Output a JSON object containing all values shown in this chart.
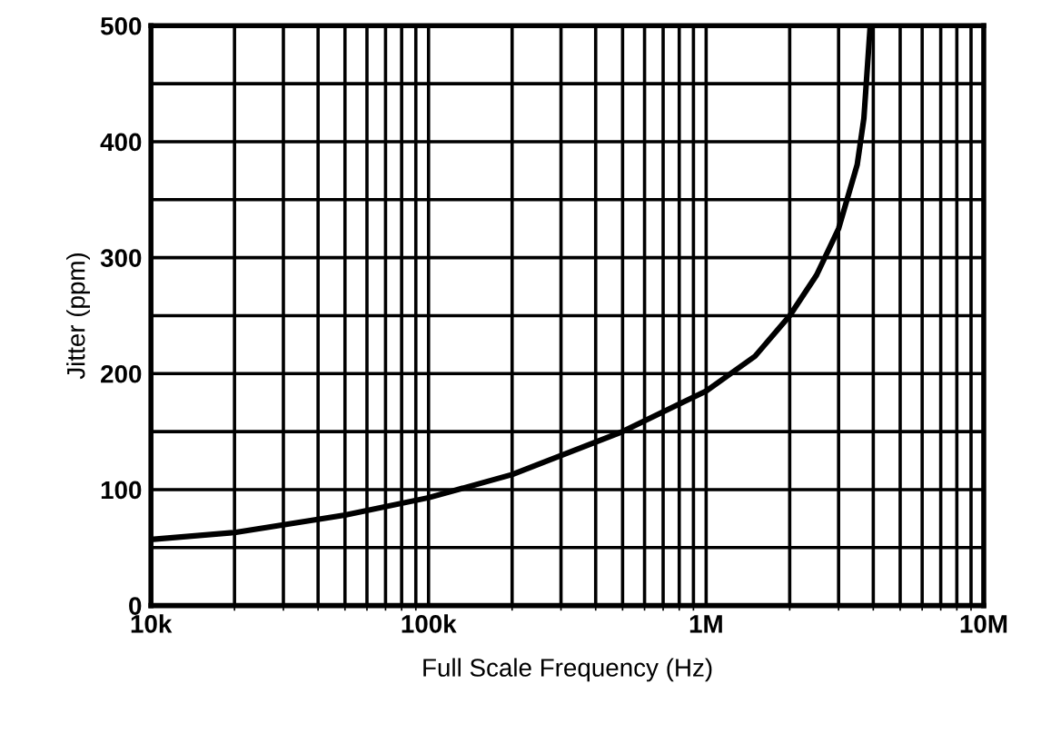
{
  "chart_data": {
    "type": "line",
    "xlabel": "Full Scale Frequency (Hz)",
    "ylabel": "Jitter (ppm)",
    "log": "x",
    "x": [
      10000,
      20000,
      50000,
      100000,
      200000,
      500000,
      1000000,
      1500000,
      2000000,
      2500000,
      3000000,
      3500000,
      3700000,
      3900000
    ],
    "series": [
      {
        "color": "#000000",
        "values": [
          57,
          63,
          78,
          93,
          113,
          150,
          185,
          215,
          250,
          285,
          325,
          380,
          420,
          500
        ]
      }
    ],
    "xlim": [
      10000,
      10000000
    ],
    "xticks": [
      {
        "value": 10000,
        "label": "10k"
      },
      {
        "value": 100000,
        "label": "100k"
      },
      {
        "value": 1000000,
        "label": "1M"
      },
      {
        "value": 10000000,
        "label": "10M"
      }
    ],
    "ylim": [
      0,
      500
    ],
    "yticks": [
      0,
      {
        "value": 50,
        "label": null
      },
      100,
      {
        "value": 150,
        "label": null
      },
      200,
      {
        "value": 250,
        "label": null
      },
      300,
      {
        "value": 350,
        "label": null
      },
      400,
      {
        "value": 450,
        "label": null
      },
      500
    ],
    "grid": true,
    "legend": false,
    "marker": "none",
    "line_style": "solid"
  }
}
